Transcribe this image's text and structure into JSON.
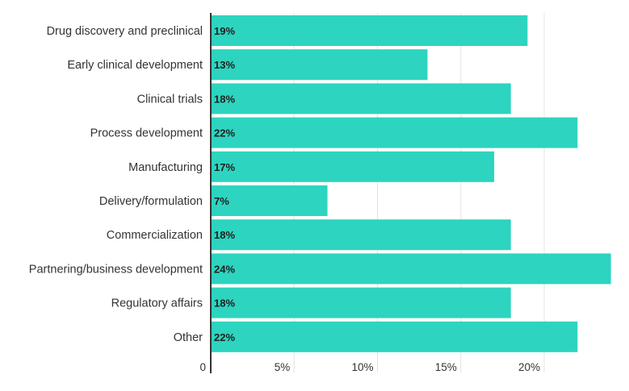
{
  "chart_data": {
    "type": "bar",
    "orientation": "horizontal",
    "title": "",
    "xlabel": "",
    "ylabel": "",
    "categories": [
      "Drug discovery and preclinical",
      "Early clinical development",
      "Clinical trials",
      "Process development",
      "Manufacturing",
      "Delivery/formulation",
      "Commercialization",
      "Partnering/business development",
      "Regulatory affairs",
      "Other"
    ],
    "values": [
      19,
      13,
      18,
      22,
      17,
      7,
      18,
      24,
      18,
      22
    ],
    "value_labels": [
      "19%",
      "13%",
      "18%",
      "22%",
      "17%",
      "7%",
      "18%",
      "24%",
      "18%",
      "22%"
    ],
    "xlim": [
      0,
      24
    ],
    "x_ticks": [
      0,
      5,
      10,
      15,
      20
    ],
    "x_tick_labels": [
      "0",
      "5%",
      "10%",
      "15%",
      "20%"
    ],
    "grid": true,
    "legend": "none",
    "bar_color": "#2dd4bf"
  }
}
